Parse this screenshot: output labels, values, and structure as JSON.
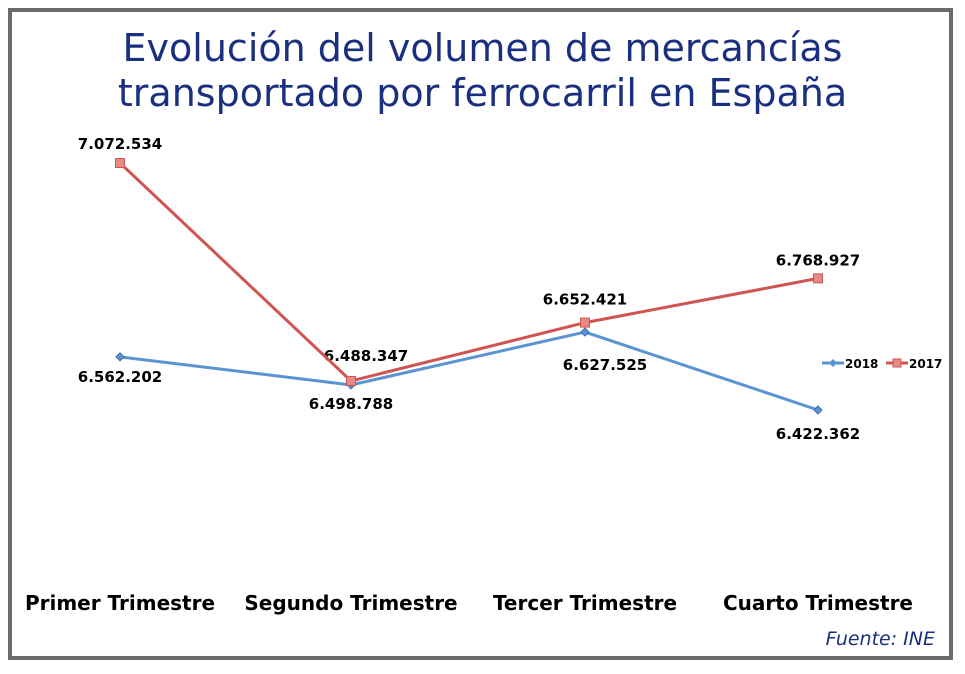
{
  "chart_data": {
    "type": "line",
    "title": "Evolución del volumen de mercancías transportado por ferrocarril en España",
    "categories": [
      "Primer Trimestre",
      "Segundo Trimestre",
      "Tercer Trimestre",
      "Cuarto Trimestre"
    ],
    "series": [
      {
        "name": "2018",
        "color": "#5b93d3",
        "values": [
          6562202,
          6488347,
          6627525,
          6422362
        ],
        "labels": [
          "6.562.202",
          "6.488.347",
          "6.627.525",
          "6.422.362"
        ]
      },
      {
        "name": "2017",
        "color": "#d0544f",
        "values": [
          7072534,
          6498788,
          6652421,
          6768927
        ],
        "labels": [
          "7.072.534",
          "6.498.788",
          "6.652.421",
          "6.768.927"
        ]
      }
    ],
    "legend": "right",
    "grid": false,
    "source": "Fuente: INE"
  }
}
